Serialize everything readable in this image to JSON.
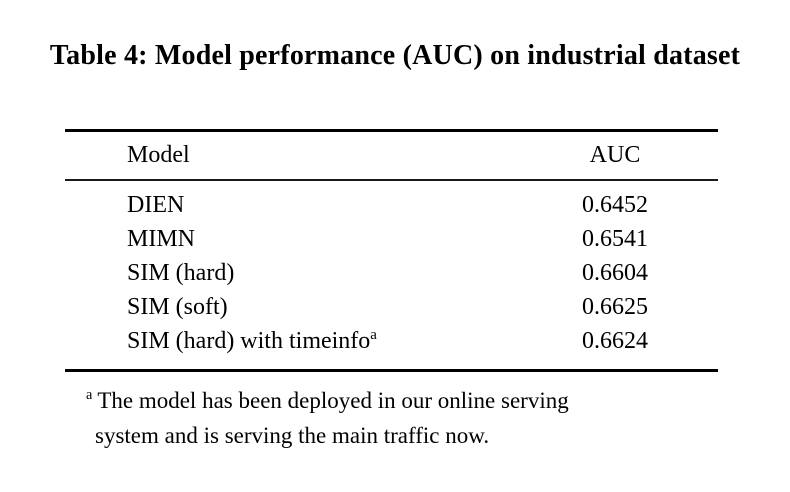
{
  "caption": "Table 4: Model performance (AUC) on industrial dataset",
  "table": {
    "headers": {
      "model": "Model",
      "auc": "AUC"
    },
    "rows": [
      {
        "model": "DIEN",
        "sup": "",
        "auc": "0.6452"
      },
      {
        "model": "MIMN",
        "sup": "",
        "auc": "0.6541"
      },
      {
        "model": "SIM (hard)",
        "sup": "",
        "auc": "0.6604"
      },
      {
        "model": "SIM (soft)",
        "sup": "",
        "auc": "0.6625"
      },
      {
        "model": "SIM (hard) with timeinfo",
        "sup": "a",
        "auc": "0.6624"
      }
    ]
  },
  "footnote": {
    "marker": "a",
    "line1": "The model has been deployed in our online serving",
    "line2": "system and is serving the main traffic now."
  },
  "colors": {
    "background": "#ffffff",
    "text": "#000000",
    "rule": "#000000"
  }
}
